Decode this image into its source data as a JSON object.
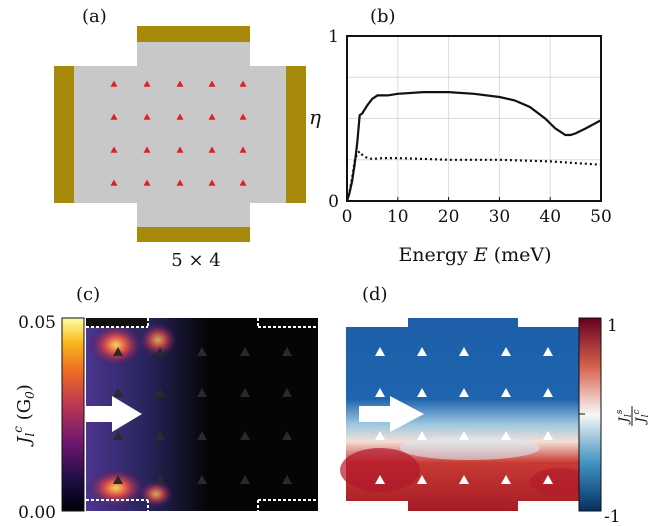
{
  "panels": {
    "a": {
      "label": "(a)",
      "caption": "5 × 4"
    },
    "b": {
      "label": "(b)"
    },
    "c": {
      "label": "(c)",
      "cbar_top": "0.05",
      "cbar_bottom": "0.00",
      "cbar_label_main": "J",
      "cbar_label_sub": "l",
      "cbar_label_sup": "c",
      "cbar_label_unit": " (G",
      "cbar_label_unit_sub": "0",
      "cbar_label_close": ")"
    },
    "d": {
      "label": "(d)",
      "cbar_top": "1",
      "cbar_bottom": "-1",
      "cbar_num_main": "J",
      "cbar_num_sub": "l",
      "cbar_num_sup": "s",
      "cbar_den_main": "J",
      "cbar_den_sub": "l",
      "cbar_den_sup": "c"
    }
  },
  "colors": {
    "device_gray": "#c8c8c8",
    "lead_gold": "#a88a0a",
    "impurity_red": "#e02020"
  },
  "chart_data": {
    "type": "line",
    "xlabel_text": "Energy ",
    "xlabel_var": "E",
    "xlabel_unit": " (meV)",
    "ylabel": "η",
    "xlim": [
      0,
      50
    ],
    "ylim": [
      0,
      1
    ],
    "xticks": [
      "0",
      "10",
      "20",
      "30",
      "40",
      "50"
    ],
    "yticks": [
      "0",
      "1"
    ],
    "grid": true,
    "series": [
      {
        "style": "solid",
        "x": [
          0,
          0.5,
          1,
          1.5,
          2,
          2.5,
          3,
          4,
          5,
          6,
          8,
          10,
          15,
          20,
          25,
          30,
          33,
          36,
          39,
          41,
          43,
          44,
          45,
          47,
          50
        ],
        "y": [
          0.0,
          0.05,
          0.12,
          0.22,
          0.35,
          0.52,
          0.53,
          0.58,
          0.62,
          0.64,
          0.64,
          0.65,
          0.66,
          0.66,
          0.65,
          0.63,
          0.61,
          0.57,
          0.5,
          0.44,
          0.4,
          0.4,
          0.41,
          0.44,
          0.49
        ]
      },
      {
        "style": "dotted",
        "x": [
          0,
          0.5,
          1,
          1.5,
          2,
          2.5,
          3,
          4,
          5,
          7,
          10,
          15,
          20,
          25,
          30,
          35,
          40,
          45,
          50
        ],
        "y": [
          0.0,
          0.05,
          0.14,
          0.24,
          0.29,
          0.3,
          0.28,
          0.26,
          0.255,
          0.26,
          0.26,
          0.255,
          0.25,
          0.25,
          0.25,
          0.245,
          0.24,
          0.23,
          0.22
        ]
      }
    ]
  }
}
